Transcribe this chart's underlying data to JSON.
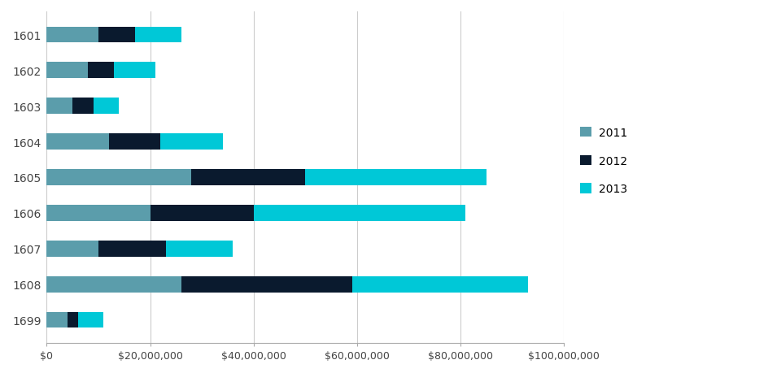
{
  "categories": [
    "1601",
    "1602",
    "1603",
    "1604",
    "1605",
    "1606",
    "1607",
    "1608",
    "1699"
  ],
  "series": {
    "2011": [
      10000000,
      8000000,
      5000000,
      12000000,
      28000000,
      20000000,
      10000000,
      26000000,
      4000000
    ],
    "2012": [
      7000000,
      5000000,
      4000000,
      10000000,
      22000000,
      20000000,
      13000000,
      33000000,
      2000000
    ],
    "2013": [
      9000000,
      8000000,
      5000000,
      12000000,
      35000000,
      41000000,
      13000000,
      34000000,
      5000000
    ]
  },
  "colors": {
    "2011": "#5b9dab",
    "2012": "#0a1a2e",
    "2013": "#00c8d7"
  },
  "legend_order": [
    "2011",
    "2012",
    "2013"
  ],
  "xlim": [
    0,
    100000000
  ],
  "xticks": [
    0,
    20000000,
    40000000,
    60000000,
    80000000,
    100000000
  ],
  "xtick_labels": [
    "$0",
    "$20,000,000",
    "$40,000,000",
    "$60,000,000",
    "$80,000,000",
    "$100,000,000"
  ],
  "background_color": "#ffffff",
  "grid_color": "#cccccc",
  "bar_height": 0.45,
  "figsize": [
    9.45,
    4.6
  ],
  "dpi": 100
}
